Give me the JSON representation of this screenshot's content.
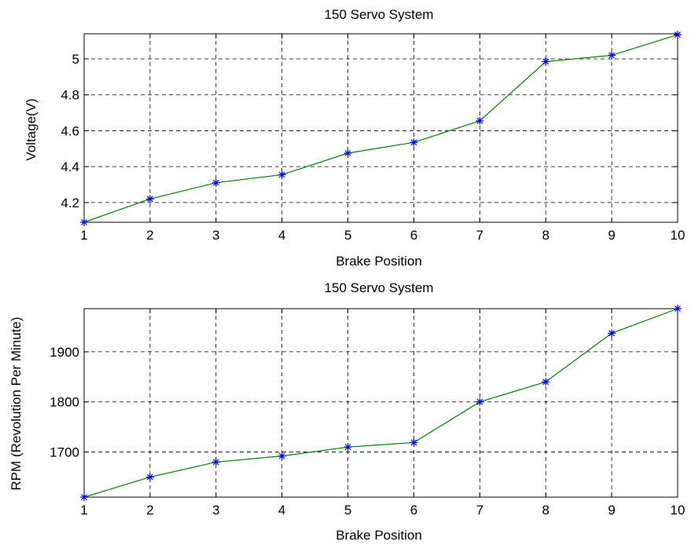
{
  "chart_data": [
    {
      "type": "line",
      "title": "150 Servo System",
      "xlabel": "Brake Position",
      "ylabel": "Voltage(V)",
      "x": [
        1,
        2,
        3,
        4,
        5,
        6,
        7,
        8,
        9,
        10
      ],
      "xlim": [
        1,
        10
      ],
      "ylim": [
        4.09,
        5.14
      ],
      "xticks": [
        1,
        2,
        3,
        4,
        5,
        6,
        7,
        8,
        9,
        10
      ],
      "yticks": [
        4.2,
        4.4,
        4.6,
        4.8,
        5
      ],
      "ytick_labels": [
        "4.2",
        "4.4",
        "4.6",
        "4.8",
        "5"
      ],
      "grid": true,
      "series": [
        {
          "values": [
            4.09,
            4.22,
            4.31,
            4.355,
            4.475,
            4.535,
            4.655,
            4.985,
            5.02,
            5.135
          ],
          "line_color": "#008000",
          "marker_color": "#0000ff",
          "marker": "asterisk"
        }
      ]
    },
    {
      "type": "line",
      "title": "150 Servo System",
      "xlabel": "Brake Position",
      "ylabel": "RPM (Revolution Per Minute)",
      "x": [
        1,
        2,
        3,
        4,
        5,
        6,
        7,
        8,
        9,
        10
      ],
      "xlim": [
        1,
        10
      ],
      "ylim": [
        1610,
        1986
      ],
      "xticks": [
        1,
        2,
        3,
        4,
        5,
        6,
        7,
        8,
        9,
        10
      ],
      "yticks": [
        1700,
        1800,
        1900
      ],
      "ytick_labels": [
        "1700",
        "1800",
        "1900"
      ],
      "grid": true,
      "series": [
        {
          "values": [
            1610,
            1650,
            1680,
            1692,
            1710,
            1719,
            1800,
            1840,
            1937,
            1986
          ],
          "line_color": "#008000",
          "marker_color": "#0000ff",
          "marker": "asterisk"
        }
      ]
    }
  ]
}
